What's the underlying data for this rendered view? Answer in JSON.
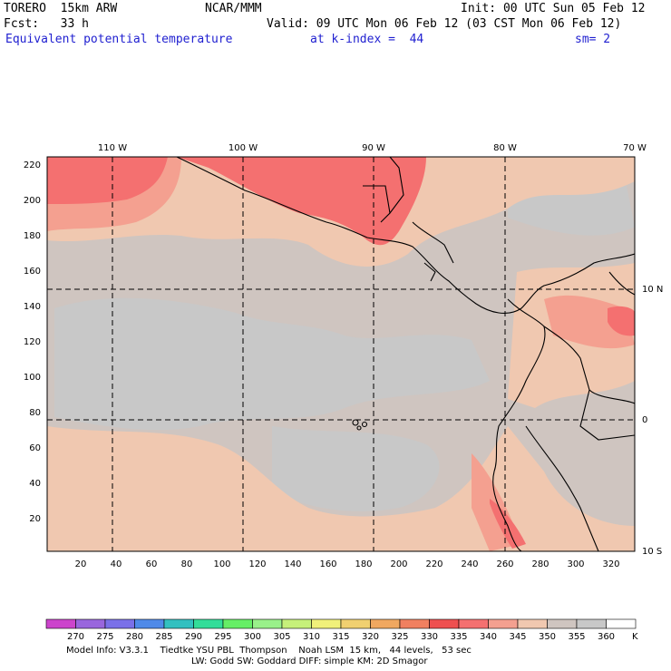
{
  "header": {
    "model": "TORERO  15km ARW",
    "org": "NCAR/MMM",
    "init": "Init: 00 UTC Sun 05 Feb 12",
    "fcst": "Fcst:   33 h",
    "valid": "Valid: 09 UTC Mon 06 Feb 12 (03 CST Mon 06 Feb 12)",
    "field": "Equivalent potential temperature",
    "level": "at k-index =  44",
    "smooth": "sm= 2"
  },
  "map": {
    "x_ticks": [
      "20",
      "40",
      "60",
      "80",
      "100",
      "120",
      "140",
      "160",
      "180",
      "200",
      "220",
      "240",
      "260",
      "280",
      "300",
      "320"
    ],
    "y_ticks": [
      "20",
      "40",
      "60",
      "80",
      "100",
      "120",
      "140",
      "160",
      "180",
      "200",
      "220"
    ],
    "lon_labels": [
      "110 W",
      "100 W",
      "90 W",
      "80 W",
      "70 W"
    ],
    "lat_labels": [
      "10 N",
      "0",
      "10 S"
    ]
  },
  "colorbar": {
    "unit": "K",
    "levels": [
      "270",
      "275",
      "280",
      "285",
      "290",
      "295",
      "300",
      "305",
      "310",
      "315",
      "320",
      "325",
      "330",
      "335",
      "340",
      "345",
      "350",
      "355",
      "360"
    ],
    "colors": [
      "#cc44cc",
      "#9966dd",
      "#7a70e8",
      "#4f8ae8",
      "#33c0c0",
      "#33dd99",
      "#66ee66",
      "#99f08a",
      "#c6f07a",
      "#f0f07a",
      "#f0d070",
      "#f0a860",
      "#f08060",
      "#ee5050",
      "#f47070",
      "#f4a090",
      "#f0c8b0",
      "#cfc5c0",
      "#c8c8c8",
      "#ffffff"
    ]
  },
  "footer": {
    "line1": "Model Info: V3.3.1    Tiedtke YSU PBL  Thompson    Noah LSM  15 km,   44 levels,   53 sec",
    "line2": "LW: Godd SW: Goddard DIFF: simple KM: 2D Smagor"
  }
}
